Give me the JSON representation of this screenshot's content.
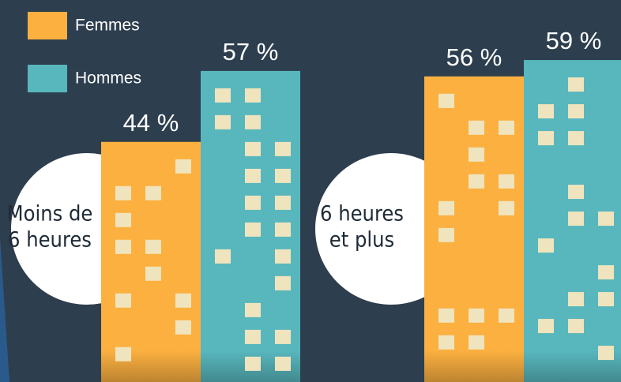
{
  "chart_data": {
    "type": "bar",
    "categories": [
      [
        "Moins de",
        "6 heures"
      ],
      [
        "6 heures",
        "et plus"
      ]
    ],
    "series": [
      {
        "name": "Femmes",
        "color": "#fbb040",
        "values": [
          44,
          56
        ],
        "value_labels": [
          "44 %",
          "56 %"
        ]
      },
      {
        "name": "Hommes",
        "color": "#58b7bd",
        "values": [
          57,
          59
        ],
        "value_labels": [
          "57 %",
          "59 %"
        ]
      }
    ],
    "ylim": [
      0,
      70
    ]
  }
}
